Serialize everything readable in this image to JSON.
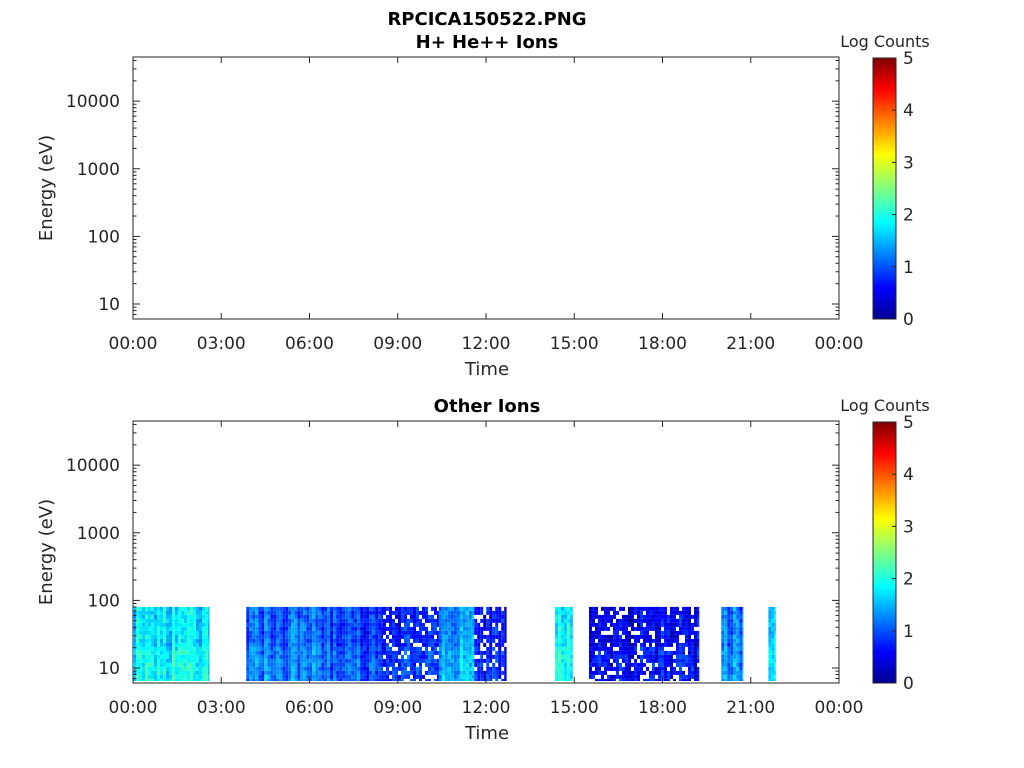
{
  "figure": {
    "title": "RPCICA150522.PNG"
  },
  "panels": [
    {
      "title": "H+ He++ Ions",
      "xlabel": "Time",
      "ylabel": "Energy (eV)",
      "colorbar_label": "Log Counts"
    },
    {
      "title": "Other Ions",
      "xlabel": "Time",
      "ylabel": "Energy (eV)",
      "colorbar_label": "Log Counts"
    }
  ],
  "chart_data": [
    {
      "type": "heatmap",
      "title": "H+ He++ Ions",
      "xlabel": "Time",
      "ylabel": "Energy (eV)",
      "x_ticks": [
        "00:00",
        "03:00",
        "06:00",
        "09:00",
        "12:00",
        "15:00",
        "18:00",
        "21:00",
        "00:00"
      ],
      "xlim_hours": [
        0,
        24
      ],
      "yscale": "log",
      "y_ticks": [
        10,
        100,
        1000,
        10000
      ],
      "y_tick_labels": [
        "10",
        "100",
        "1000",
        "10000"
      ],
      "ylim": [
        6,
        45000
      ],
      "colorbar": {
        "label": "Log Counts",
        "range": [
          0,
          5
        ],
        "ticks": [
          "0",
          "1",
          "2",
          "3",
          "4",
          "5"
        ],
        "colormap": "jet"
      },
      "segments": []
    },
    {
      "type": "heatmap",
      "title": "Other Ions",
      "xlabel": "Time",
      "ylabel": "Energy (eV)",
      "x_ticks": [
        "00:00",
        "03:00",
        "06:00",
        "09:00",
        "12:00",
        "15:00",
        "18:00",
        "21:00",
        "00:00"
      ],
      "xlim_hours": [
        0,
        24
      ],
      "yscale": "log",
      "y_ticks": [
        10,
        100,
        1000,
        10000
      ],
      "y_tick_labels": [
        "10",
        "100",
        "1000",
        "10000"
      ],
      "ylim": [
        6,
        45000
      ],
      "colorbar": {
        "label": "Log Counts",
        "range": [
          0,
          5
        ],
        "ticks": [
          "0",
          "1",
          "2",
          "3",
          "4",
          "5"
        ],
        "colormap": "jet"
      },
      "segments": [
        {
          "start_hour": 0.0,
          "end_hour": 2.6,
          "emin": 6,
          "emax": 80,
          "level": 1.7
        },
        {
          "start_hour": 3.85,
          "end_hour": 6.6,
          "emin": 6,
          "emax": 80,
          "level": 1.1
        },
        {
          "start_hour": 6.6,
          "end_hour": 8.5,
          "emin": 6,
          "emax": 80,
          "level": 0.9
        },
        {
          "start_hour": 8.5,
          "end_hour": 10.4,
          "emin": 6,
          "emax": 80,
          "level": 0.7
        },
        {
          "start_hour": 10.4,
          "end_hour": 11.6,
          "emin": 6,
          "emax": 80,
          "level": 1.3
        },
        {
          "start_hour": 11.6,
          "end_hour": 12.7,
          "emin": 6,
          "emax": 80,
          "level": 0.6
        },
        {
          "start_hour": 14.35,
          "end_hour": 14.95,
          "emin": 6,
          "emax": 80,
          "level": 1.8
        },
        {
          "start_hour": 15.5,
          "end_hour": 19.25,
          "emin": 6,
          "emax": 80,
          "level": 0.5
        },
        {
          "start_hour": 20.0,
          "end_hour": 20.75,
          "emin": 6,
          "emax": 80,
          "level": 1.2
        },
        {
          "start_hour": 21.6,
          "end_hour": 21.85,
          "emin": 6,
          "emax": 80,
          "level": 1.6
        }
      ]
    }
  ]
}
